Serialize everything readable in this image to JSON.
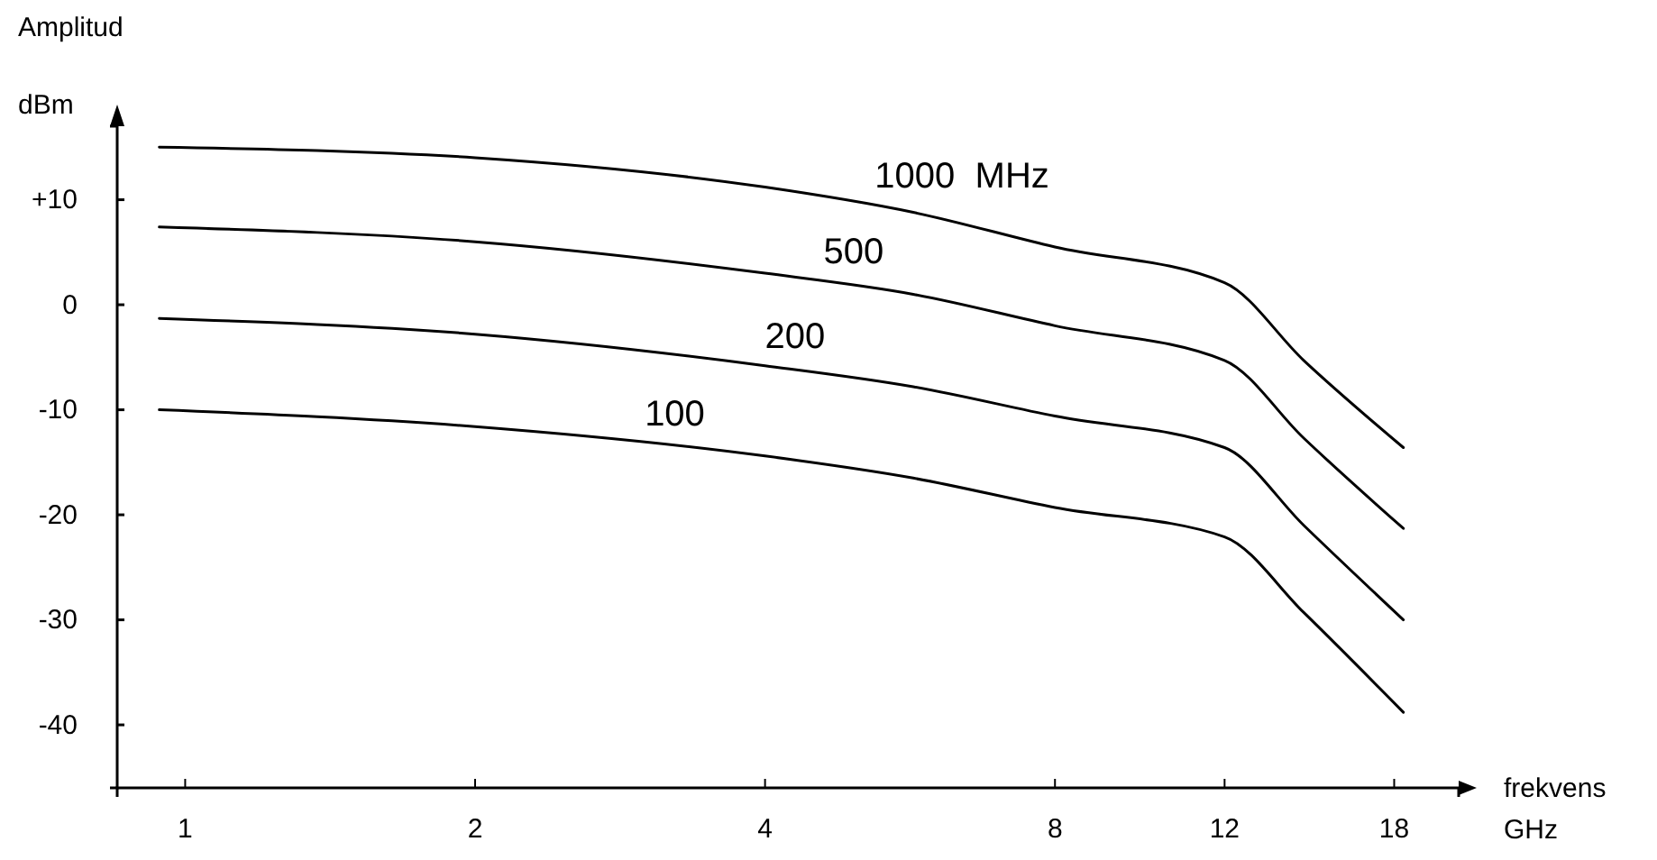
{
  "chart_data": {
    "type": "line",
    "ylabel": "Amplitud",
    "xlabel": "frekvens",
    "log": "x",
    "annotations": [
      "dBm",
      "GHz"
    ],
    "xlim": [
      0.85,
      21
    ],
    "xticks": [
      1,
      2,
      4,
      8,
      12,
      18
    ],
    "ylim": [
      -46,
      17
    ],
    "yticks": [
      {
        "value": 10,
        "label": "+10"
      },
      0,
      -10,
      -20,
      -30,
      -40
    ],
    "grid": false,
    "marker": "none",
    "line_style": "solid",
    "series": [
      {
        "name": "1000  MHz",
        "color": "#000000",
        "x": [
          0.94,
          2,
          4,
          5.7,
          8,
          12,
          14.5,
          18.4
        ],
        "values": [
          15,
          14,
          11.2,
          8.8,
          5.5,
          2.1,
          -5.3,
          -13.6
        ]
      },
      {
        "name": "500",
        "color": "#000000",
        "x": [
          0.94,
          2,
          4,
          5.7,
          8,
          12,
          14.5,
          18.4
        ],
        "values": [
          7.4,
          6,
          3,
          1,
          -2,
          -5.3,
          -12.7,
          -21.3
        ]
      },
      {
        "name": "200",
        "color": "#000000",
        "x": [
          0.94,
          2,
          4,
          5.7,
          8,
          12,
          14.5,
          18.4
        ],
        "values": [
          -1.3,
          -2.8,
          -5.8,
          -7.8,
          -10.6,
          -13.6,
          -21,
          -30
        ]
      },
      {
        "name": "100",
        "color": "#000000",
        "x": [
          0.94,
          2,
          4,
          5.7,
          8,
          12,
          14.5,
          18.4
        ],
        "values": [
          -10,
          -11.6,
          -14.4,
          -16.5,
          -19.3,
          -22.1,
          -29.3,
          -38.8
        ]
      }
    ]
  }
}
